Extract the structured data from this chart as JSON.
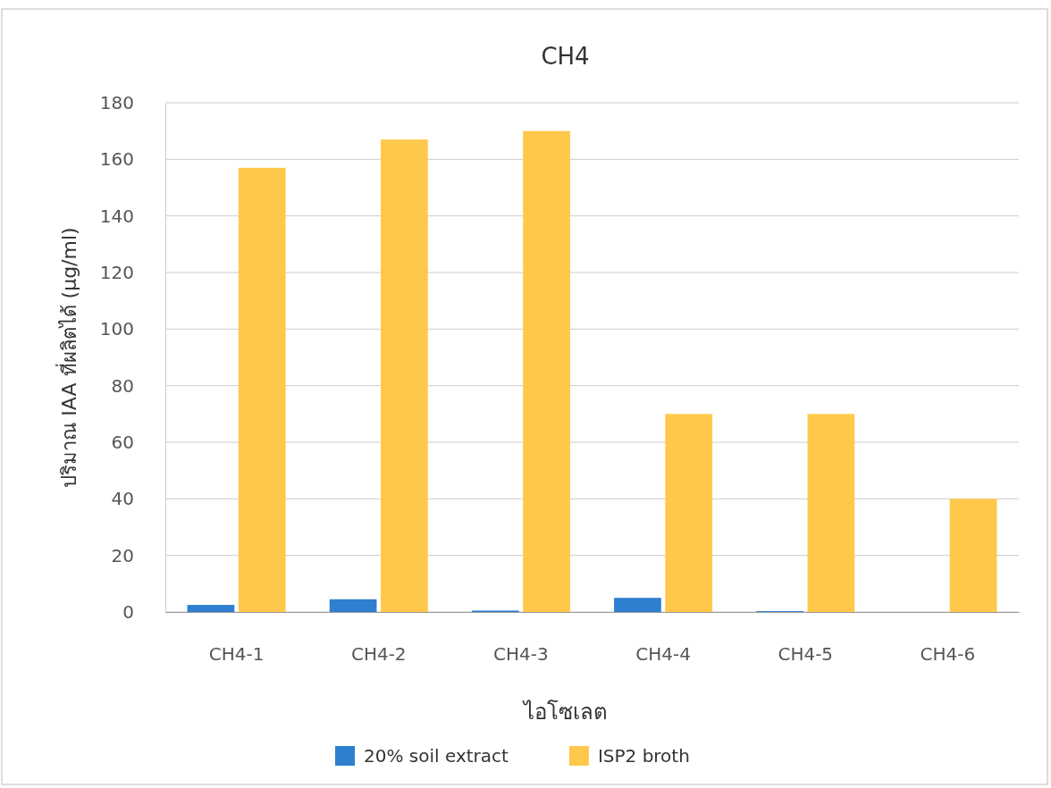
{
  "chart_data": {
    "type": "bar",
    "title": "CH4",
    "xlabel": "ไอโซเลต",
    "ylabel": "ปริมาณ IAA ที่ผลิตได้ (μg/ml)",
    "categories": [
      "CH4-1",
      "CH4-2",
      "CH4-3",
      "CH4-4",
      "CH4-5",
      "CH4-6"
    ],
    "series": [
      {
        "name": "20% soil extract",
        "color": "#2e7fd0",
        "values": [
          2.5,
          4.5,
          0.5,
          5,
          0.3,
          0
        ]
      },
      {
        "name": "ISP2 broth",
        "color": "#ffc84a",
        "values": [
          157,
          167,
          170,
          70,
          70,
          40
        ]
      }
    ],
    "ylim": [
      0,
      180
    ],
    "yticks": [
      0,
      20,
      40,
      60,
      80,
      100,
      120,
      140,
      160,
      180
    ],
    "grid": "y",
    "legend": "bottom"
  }
}
